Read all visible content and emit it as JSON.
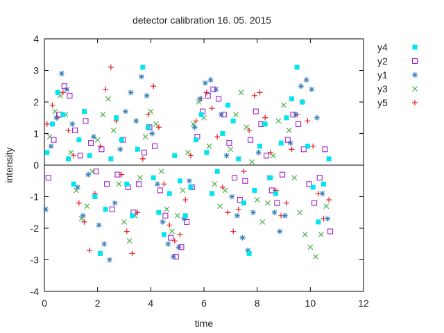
{
  "chart_data": {
    "type": "scatter",
    "title": "detector calibration 16. 05. 2015",
    "xlabel": "time",
    "ylabel": "intensity",
    "xlim": [
      0,
      12
    ],
    "ylim": [
      -4,
      4
    ],
    "xticks": [
      "0",
      "2",
      "4",
      "6",
      "8",
      "10",
      "12"
    ],
    "yticks": [
      "-4",
      "-3",
      "-2",
      "-1",
      "0",
      "1",
      "2",
      "3",
      "4"
    ],
    "zero_line": 0,
    "legend_position": "outside-right",
    "grid": false,
    "series": [
      {
        "name": "y5",
        "color": "#e41a1c",
        "marker": "plus",
        "x": [
          0.1,
          0.3,
          0.5,
          0.7,
          0.9,
          1.1,
          1.3,
          1.5,
          1.7,
          1.9,
          2.1,
          2.3,
          2.5,
          2.7,
          2.9,
          3.1,
          3.3,
          3.5,
          3.7,
          3.9,
          4.1,
          4.3,
          4.5,
          4.7,
          4.9,
          5.1,
          5.3,
          5.5,
          5.7,
          5.9,
          6.1,
          6.3,
          6.5,
          6.7,
          6.9,
          7.1,
          7.3,
          7.5,
          7.7,
          7.9,
          8.1,
          8.3,
          8.5,
          8.7,
          8.9,
          9.1,
          9.3,
          9.5,
          9.7,
          9.9,
          10.1,
          10.3,
          10.5,
          10.7
        ],
        "y": [
          1.3,
          1.9,
          1.5,
          2.3,
          1.1,
          0.3,
          -1.2,
          -1.8,
          -2.7,
          -0.9,
          0.6,
          2.4,
          3.1,
          1.4,
          -0.3,
          -2.1,
          -2.8,
          -1.5,
          0.2,
          1.6,
          2.5,
          1.2,
          -0.6,
          -1.9,
          -2.4,
          -2.2,
          -1.1,
          0.3,
          1.4,
          2.1,
          2.3,
          1.8,
          0.9,
          -0.7,
          -1.5,
          -2.1,
          -1.4,
          -0.2,
          1.1,
          2.2,
          2.3,
          1.5,
          0.4,
          -0.8,
          -1.6,
          -1.2,
          0.5,
          1.6,
          2.0,
          1.4,
          0.6,
          -0.9,
          -1.7,
          -1.1
        ]
      },
      {
        "name": "y3",
        "color": "#4daf4a",
        "marker": "cross",
        "x": [
          0.2,
          0.4,
          0.6,
          0.8,
          1.0,
          1.2,
          1.4,
          1.6,
          1.8,
          2.0,
          2.2,
          2.4,
          2.6,
          2.8,
          3.0,
          3.2,
          3.4,
          3.6,
          3.8,
          4.0,
          4.2,
          4.4,
          4.6,
          4.8,
          5.0,
          5.2,
          5.4,
          5.6,
          5.8,
          6.0,
          6.2,
          6.4,
          6.6,
          6.8,
          7.0,
          7.2,
          7.4,
          7.6,
          7.8,
          8.0,
          8.2,
          8.4,
          8.6,
          8.8,
          9.0,
          9.2,
          9.4,
          9.6,
          9.8,
          10.0,
          10.2,
          10.4,
          10.6
        ],
        "y": [
          0.9,
          1.7,
          2.2,
          1.6,
          0.4,
          -0.8,
          -1.7,
          -1.3,
          -0.2,
          0.8,
          1.6,
          2.1,
          1.1,
          -0.6,
          -1.8,
          -2.4,
          -1.6,
          -0.4,
          0.9,
          1.7,
          1.3,
          -0.2,
          -1.4,
          -2.1,
          -1.6,
          -0.8,
          0.4,
          1.3,
          2.0,
          1.5,
          0.6,
          -0.6,
          -1.3,
          -0.8,
          0.5,
          1.6,
          2.3,
          1.2,
          0.1,
          -1.1,
          -1.8,
          -1.2,
          0.3,
          1.4,
          1.9,
          1.1,
          -0.4,
          -1.5,
          -2.2,
          -2.6,
          -2.9,
          -2.2,
          -1.3
        ]
      },
      {
        "name": "y1",
        "color": "#377eb8",
        "marker": "star",
        "x": [
          0.05,
          0.25,
          0.45,
          0.65,
          0.85,
          1.05,
          1.25,
          1.45,
          1.65,
          1.85,
          2.05,
          2.25,
          2.45,
          2.65,
          2.85,
          3.05,
          3.25,
          3.45,
          3.65,
          3.85,
          4.05,
          4.25,
          4.45,
          4.65,
          4.85,
          5.05,
          5.25,
          5.45,
          5.65,
          5.85,
          6.05,
          6.25,
          6.45,
          6.65,
          6.85,
          7.05,
          7.25,
          7.45,
          7.65,
          7.85,
          8.05,
          8.25,
          8.45,
          8.65,
          8.85,
          9.05,
          9.25,
          9.45,
          9.65,
          9.85,
          10.05,
          10.25,
          10.45,
          10.65
        ],
        "y": [
          -1.4,
          0.6,
          1.5,
          2.9,
          2.4,
          1.3,
          -0.7,
          -1.6,
          -0.3,
          0.9,
          -1.9,
          -2.5,
          -3.0,
          -1.2,
          0.5,
          1.7,
          2.3,
          1.4,
          2.8,
          2.2,
          1.0,
          -0.6,
          -1.8,
          -2.5,
          -2.9,
          -2.6,
          -1.7,
          -0.5,
          1.2,
          2.1,
          2.6,
          2.7,
          2.4,
          1.6,
          0.3,
          -1.0,
          -1.6,
          -2.3,
          -2.7,
          -1.5,
          0.4,
          1.3,
          -0.4,
          -1.5,
          -2.1,
          -1.6,
          0.7,
          1.6,
          2.5,
          2.7,
          2.4,
          1.5,
          -0.9,
          -1.7
        ]
      },
      {
        "name": "y2",
        "color": "#9d1fcf",
        "marker": "square-open",
        "x": [
          0.15,
          0.35,
          0.55,
          0.75,
          0.95,
          1.15,
          1.35,
          1.55,
          1.75,
          1.95,
          2.15,
          2.35,
          2.55,
          2.75,
          2.95,
          3.15,
          3.35,
          3.55,
          3.75,
          3.95,
          4.15,
          4.35,
          4.55,
          4.75,
          4.95,
          5.15,
          5.35,
          5.55,
          5.75,
          5.95,
          6.15,
          6.35,
          6.55,
          6.75,
          6.95,
          7.15,
          7.35,
          7.55,
          7.75,
          7.95,
          8.15,
          8.35,
          8.55,
          8.75,
          8.95,
          9.15,
          9.35,
          9.55,
          9.75,
          9.95,
          10.15,
          10.35,
          10.55,
          10.75
        ],
        "y": [
          -0.4,
          0.8,
          1.6,
          2.5,
          2.2,
          1.1,
          0.3,
          1.4,
          0.7,
          -0.2,
          0.5,
          -0.6,
          -1.4,
          -0.3,
          0.8,
          -0.7,
          -1.5,
          -0.6,
          0.4,
          1.2,
          0.6,
          -0.8,
          -1.6,
          -2.3,
          -2.9,
          -2.6,
          -1.8,
          -0.7,
          0.9,
          1.7,
          2.2,
          2.4,
          2.1,
          1.6,
          0.7,
          -0.4,
          -1.1,
          -0.5,
          0.8,
          1.7,
          1.3,
          0.3,
          -0.8,
          -1.2,
          -0.3,
          0.8,
          1.6,
          1.3,
          0.5,
          -0.6,
          -1.2,
          -0.4,
          0.5,
          -2.1
        ]
      },
      {
        "name": "y4",
        "color": "#00e5ee",
        "marker": "square-filled",
        "x": [
          0.1,
          0.3,
          0.5,
          0.7,
          0.9,
          1.1,
          1.3,
          1.5,
          1.7,
          1.9,
          2.1,
          2.3,
          2.5,
          2.7,
          2.9,
          3.1,
          3.3,
          3.5,
          3.7,
          3.9,
          4.1,
          4.3,
          4.5,
          4.7,
          4.9,
          5.1,
          5.3,
          5.5,
          5.7,
          5.9,
          6.1,
          6.3,
          6.5,
          6.7,
          6.9,
          7.1,
          7.3,
          7.5,
          7.7,
          7.9,
          8.1,
          8.3,
          8.5,
          8.7,
          8.9,
          9.1,
          9.3,
          9.5,
          9.7,
          9.9,
          10.1,
          10.3,
          10.5,
          10.7
        ],
        "y": [
          0.4,
          1.3,
          2.3,
          1.6,
          0.2,
          -0.6,
          0.8,
          1.7,
          0.3,
          -1.0,
          -2.8,
          -1.4,
          0.2,
          1.5,
          0.8,
          -0.6,
          -1.6,
          0.5,
          3.1,
          1.2,
          -0.4,
          -1.5,
          -2.2,
          -0.9,
          0.3,
          -0.5,
          -1.6,
          -0.7,
          0.8,
          1.6,
          0.4,
          -0.9,
          -0.2,
          1.0,
          1.9,
          1.4,
          0.2,
          -1.2,
          -2.8,
          -0.8,
          0.6,
          1.3,
          -0.4,
          -0.9,
          0.7,
          1.5,
          2.1,
          3.1,
          2.0,
          0.6,
          -0.7,
          -1.8,
          -0.6,
          0.2
        ]
      }
    ]
  }
}
